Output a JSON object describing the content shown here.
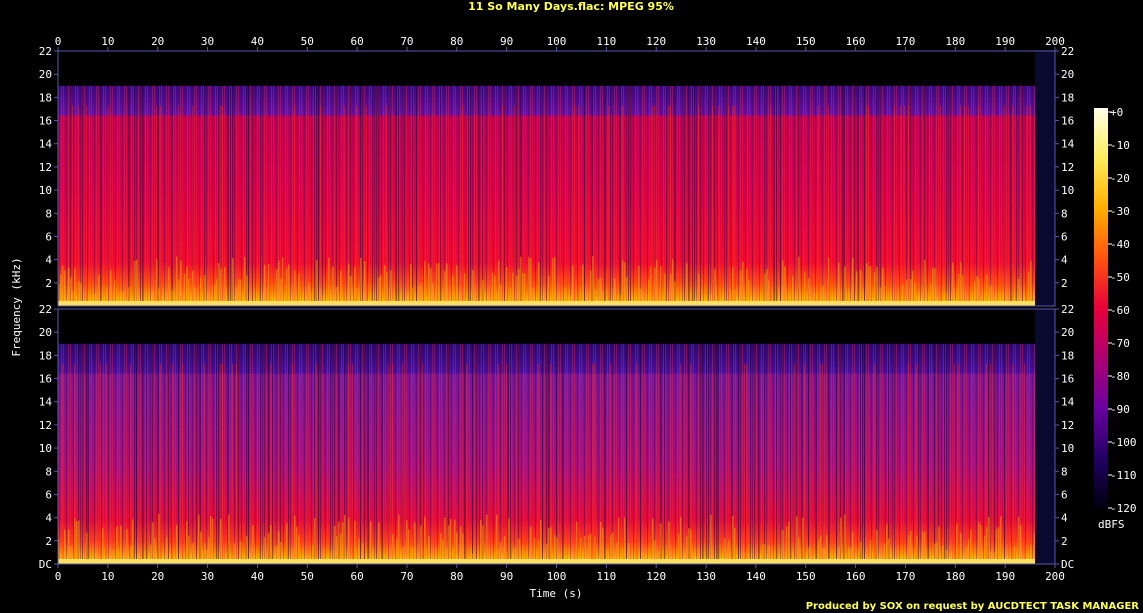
{
  "chart_data": {
    "type": "heatmap",
    "title": "11 So Many Days.flac: MPEG 95%",
    "xlabel": "Time (s)",
    "ylabel": "Frequency (kHz)",
    "footer": "Produced by SOX on request by AUCDTECT TASK MANAGER",
    "xlim": [
      0,
      200
    ],
    "ylim": [
      0,
      22
    ],
    "x_ticks": [
      0,
      10,
      20,
      30,
      40,
      50,
      60,
      70,
      80,
      90,
      100,
      110,
      120,
      130,
      140,
      150,
      160,
      170,
      180,
      190,
      200
    ],
    "y_ticks": [
      "DC",
      "2",
      "4",
      "6",
      "8",
      "10",
      "12",
      "14",
      "16",
      "18",
      "20",
      "22"
    ],
    "top_panel_y_ticks": [
      "2",
      "4",
      "6",
      "8",
      "10",
      "12",
      "14",
      "16",
      "18",
      "20",
      "22"
    ],
    "colorbar": {
      "label": "dBFS",
      "ticks": [
        "+0",
        "-10",
        "-20",
        "-30",
        "-40",
        "-50",
        "-60",
        "-70",
        "-80",
        "-90",
        "-100",
        "-110",
        "-120"
      ],
      "range": [
        -120,
        0
      ]
    },
    "channels": [
      {
        "channel": 1,
        "audio_end_s": 196,
        "cutoff_khz": 19,
        "lowpass_band_khz": 16,
        "dominant_level_dbfs": -55
      },
      {
        "channel": 2,
        "audio_end_s": 196,
        "cutoff_khz": 19,
        "lowpass_band_khz": 16,
        "dominant_level_dbfs": -75
      }
    ],
    "colors": {
      "background": "#000000",
      "grid_frame": "#5a5aa8",
      "title": "#ffff55",
      "footer": "#ffff55"
    }
  }
}
